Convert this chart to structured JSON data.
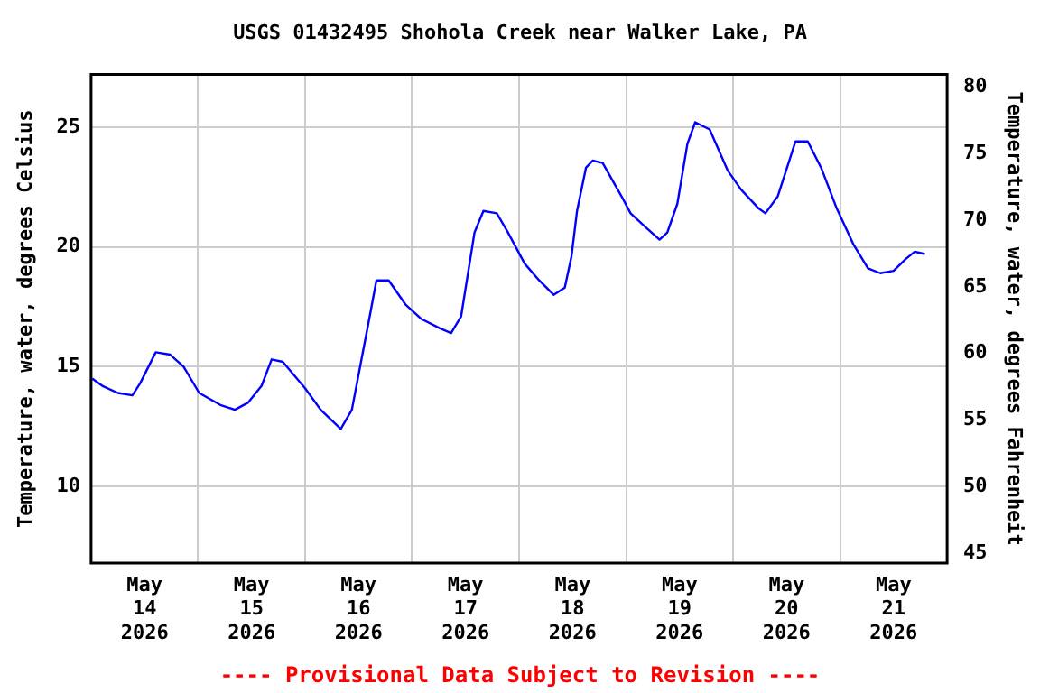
{
  "chart_data": {
    "type": "line",
    "title": "USGS 01432495 Shohola Creek near Walker Lake, PA",
    "ylabel": "Temperature, water, degrees Celsius",
    "y2label": "Temperature, water, degrees Fahrenheit",
    "annotations": [
      "---- Provisional Data Subject to Revision ----"
    ],
    "x": [
      "2026-05-14T00:15",
      "2026-05-14T02:30",
      "2026-05-14T06:00",
      "2026-05-14T09:15",
      "2026-05-14T11:00",
      "2026-05-14T14:30",
      "2026-05-14T17:45",
      "2026-05-14T20:45",
      "2026-05-15T00:15",
      "2026-05-15T05:00",
      "2026-05-15T08:15",
      "2026-05-15T11:15",
      "2026-05-15T14:15",
      "2026-05-15T16:30",
      "2026-05-15T19:00",
      "2026-05-16T00:00",
      "2026-05-16T03:30",
      "2026-05-16T08:00",
      "2026-05-16T10:30",
      "2026-05-16T12:45",
      "2026-05-16T14:30",
      "2026-05-16T16:00",
      "2026-05-16T18:45",
      "2026-05-16T22:30",
      "2026-05-17T02:00",
      "2026-05-17T06:15",
      "2026-05-17T08:45",
      "2026-05-17T11:00",
      "2026-05-17T14:00",
      "2026-05-17T16:00",
      "2026-05-17T19:00",
      "2026-05-17T21:30",
      "2026-05-18T01:15",
      "2026-05-18T04:30",
      "2026-05-18T07:45",
      "2026-05-18T10:15",
      "2026-05-18T11:45",
      "2026-05-18T13:00",
      "2026-05-18T15:00",
      "2026-05-18T16:30",
      "2026-05-18T18:45",
      "2026-05-18T23:00",
      "2026-05-19T01:00",
      "2026-05-19T04:30",
      "2026-05-19T07:30",
      "2026-05-19T09:15",
      "2026-05-19T11:30",
      "2026-05-19T13:45",
      "2026-05-19T15:30",
      "2026-05-19T18:45",
      "2026-05-19T22:45",
      "2026-05-20T01:45",
      "2026-05-20T05:45",
      "2026-05-20T07:15",
      "2026-05-20T10:00",
      "2026-05-20T14:00",
      "2026-05-20T16:45",
      "2026-05-20T19:45",
      "2026-05-20T23:15",
      "2026-05-21T03:00",
      "2026-05-21T06:15",
      "2026-05-21T09:00",
      "2026-05-21T12:00",
      "2026-05-21T14:45",
      "2026-05-21T16:45",
      "2026-05-21T19:00"
    ],
    "series": [
      {
        "color": "#0000ff",
        "values": [
          14.5,
          14.2,
          13.9,
          13.8,
          14.3,
          15.6,
          15.5,
          15.0,
          13.9,
          13.4,
          13.2,
          13.5,
          14.2,
          15.3,
          15.2,
          14.1,
          13.2,
          12.4,
          13.2,
          15.4,
          17.1,
          18.6,
          18.6,
          17.6,
          17.0,
          16.6,
          16.4,
          17.1,
          20.6,
          21.5,
          21.4,
          20.6,
          19.3,
          18.6,
          18.0,
          18.3,
          19.6,
          21.5,
          23.3,
          23.6,
          23.5,
          22.1,
          21.4,
          20.8,
          20.3,
          20.6,
          21.8,
          24.3,
          25.2,
          24.9,
          23.2,
          22.4,
          21.6,
          21.4,
          22.1,
          24.4,
          24.4,
          23.3,
          21.6,
          20.1,
          19.1,
          18.9,
          19.0,
          19.5,
          19.8,
          19.7
        ]
      }
    ],
    "xlim": [
      "2026-05-14T00:00",
      "2026-05-22T00:00"
    ],
    "xticks": [
      {
        "value": "2026-05-14T12:00",
        "label": "May 14 2026"
      },
      {
        "value": "2026-05-15T00:00",
        "label": null
      },
      {
        "value": "2026-05-15T12:00",
        "label": "May 15 2026"
      },
      {
        "value": "2026-05-16T00:00",
        "label": null
      },
      {
        "value": "2026-05-16T12:00",
        "label": "May 16 2026"
      },
      {
        "value": "2026-05-17T00:00",
        "label": null
      },
      {
        "value": "2026-05-17T12:00",
        "label": "May 17 2026"
      },
      {
        "value": "2026-05-18T00:00",
        "label": null
      },
      {
        "value": "2026-05-18T12:00",
        "label": "May 18 2026"
      },
      {
        "value": "2026-05-19T00:00",
        "label": null
      },
      {
        "value": "2026-05-19T12:00",
        "label": "May 19 2026"
      },
      {
        "value": "2026-05-20T00:00",
        "label": null
      },
      {
        "value": "2026-05-20T12:00",
        "label": "May 20 2026"
      },
      {
        "value": "2026-05-21T00:00",
        "label": null
      },
      {
        "value": "2026-05-21T12:00",
        "label": "May 21 2026"
      }
    ],
    "ylim": [
      6.8,
      27.2
    ],
    "yticks": [
      10,
      15,
      20,
      25
    ],
    "y2lim": [
      44.24,
      80.96
    ],
    "y2ticks": [
      45,
      50,
      55,
      60,
      65,
      70,
      75,
      80
    ],
    "grid": true,
    "legend": false,
    "marker": "none",
    "line_style": "solid"
  }
}
